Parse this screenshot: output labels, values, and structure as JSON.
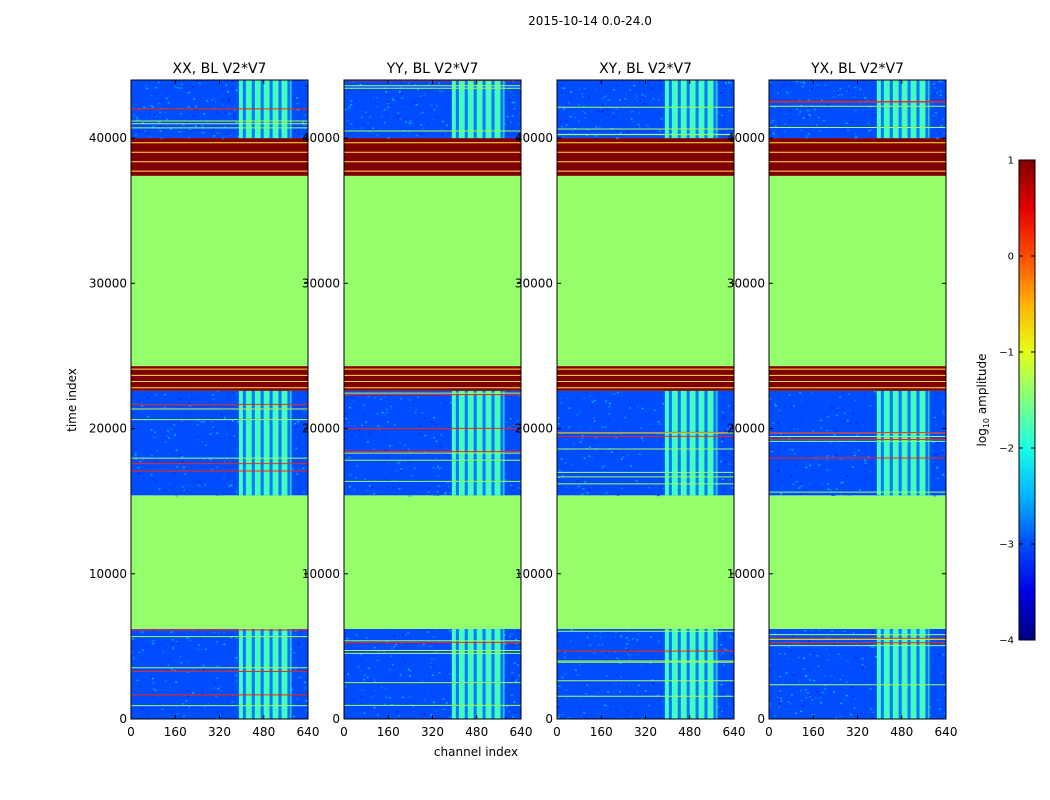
{
  "suptitle": "2015-10-14 0.0-24.0",
  "chart_data": {
    "type": "heatmap",
    "xlabel": "channel index",
    "ylabel": "time index",
    "xlim": [
      0,
      640
    ],
    "ylim": [
      0,
      44000
    ],
    "xticks": [
      0,
      160,
      320,
      480,
      640
    ],
    "yticks": [
      0,
      10000,
      20000,
      30000,
      40000
    ],
    "colormap": "jet",
    "colorbar": {
      "label_prefix": "log",
      "label_base": "10",
      "label_suffix": "amplitude",
      "range": [
        -4,
        1
      ],
      "ticks": [
        1,
        0,
        -1,
        -2,
        -3,
        -4
      ],
      "tick_labels": [
        "1",
        "0",
        "−1",
        "−2",
        "−3",
        "−4"
      ]
    },
    "panels": [
      {
        "title": "XX, BL V2*V7"
      },
      {
        "title": "YY, BL V2*V7"
      },
      {
        "title": "XY, BL V2*V7"
      },
      {
        "title": "YX, BL V2*V7"
      }
    ],
    "time_blocks": [
      {
        "from": 0,
        "to": 6200,
        "kind": "data",
        "level": -3.0
      },
      {
        "from": 6200,
        "to": 15400,
        "kind": "flat",
        "level": -1.4
      },
      {
        "from": 15400,
        "to": 22600,
        "kind": "data",
        "level": -3.0
      },
      {
        "from": 22600,
        "to": 24300,
        "kind": "flagged",
        "level": 1.0
      },
      {
        "from": 24300,
        "to": 37400,
        "kind": "flat",
        "level": -1.4
      },
      {
        "from": 37400,
        "to": 40000,
        "kind": "flagged",
        "level": 1.0
      },
      {
        "from": 40000,
        "to": 44000,
        "kind": "data",
        "level": -3.0
      }
    ],
    "rfi_channel_band": [
      390,
      580
    ],
    "rfi_level": -1.8
  }
}
